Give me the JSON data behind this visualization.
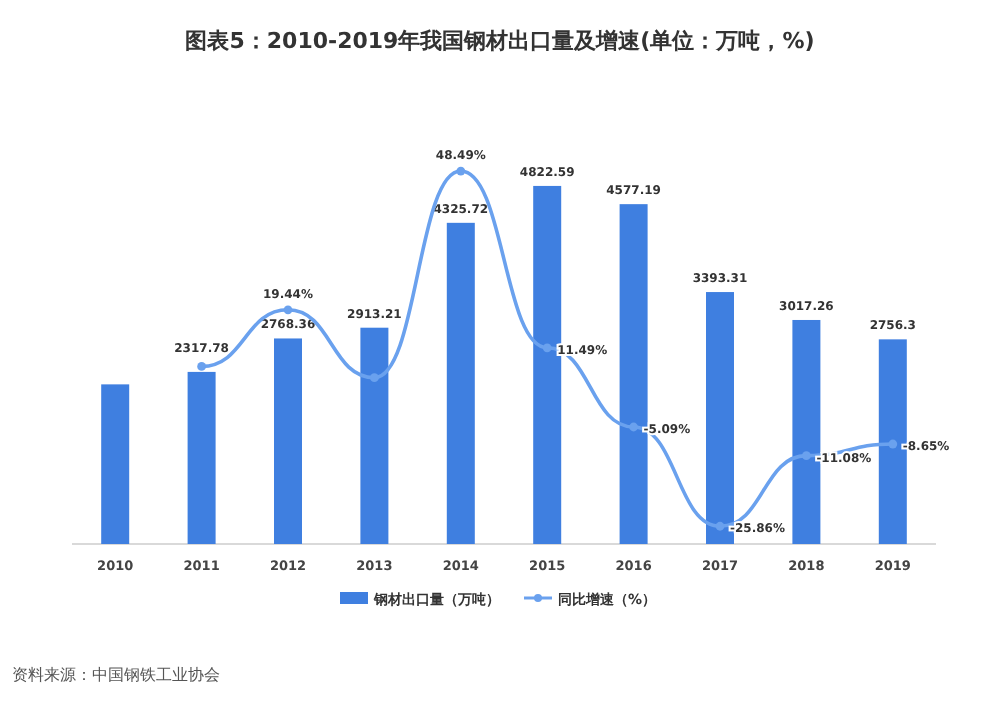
{
  "chart_data": {
    "type": "bar",
    "title": "图表5：2010-2019年我国钢材出口量及增速(单位：万吨，%)",
    "categories": [
      "2010",
      "2011",
      "2012",
      "2013",
      "2014",
      "2015",
      "2016",
      "2017",
      "2018",
      "2019"
    ],
    "series": [
      {
        "name": "钢材出口量（万吨）",
        "color": "#3f7fe0",
        "values": [
          2150,
          2317.78,
          2768.36,
          2913.21,
          4325.72,
          4822.59,
          4577.19,
          3393.31,
          3017.26,
          2756.3
        ],
        "value_labels": [
          null,
          "2317.78",
          "2768.36",
          "2913.21",
          "4325.72",
          "4822.59",
          "4577.19",
          "3393.31",
          "3017.26",
          "2756.3"
        ]
      },
      {
        "name": "同比增速（%）",
        "type": "line",
        "axis": "y2",
        "color": "#6aa1ee",
        "marker": "circle",
        "values": [
          null,
          7.6,
          19.44,
          5.23,
          48.49,
          11.49,
          -5.09,
          -25.86,
          -11.08,
          -8.65
        ],
        "value_labels": [
          null,
          null,
          "19.44%",
          null,
          "48.49%",
          "11.49%",
          "-5.09%",
          "-25.86%",
          "-11.08%",
          "-8.65%"
        ]
      }
    ],
    "tick_labels": "x",
    "legend": "bottom",
    "annotations": [
      "资料来源：中国钢铁工业协会"
    ]
  }
}
